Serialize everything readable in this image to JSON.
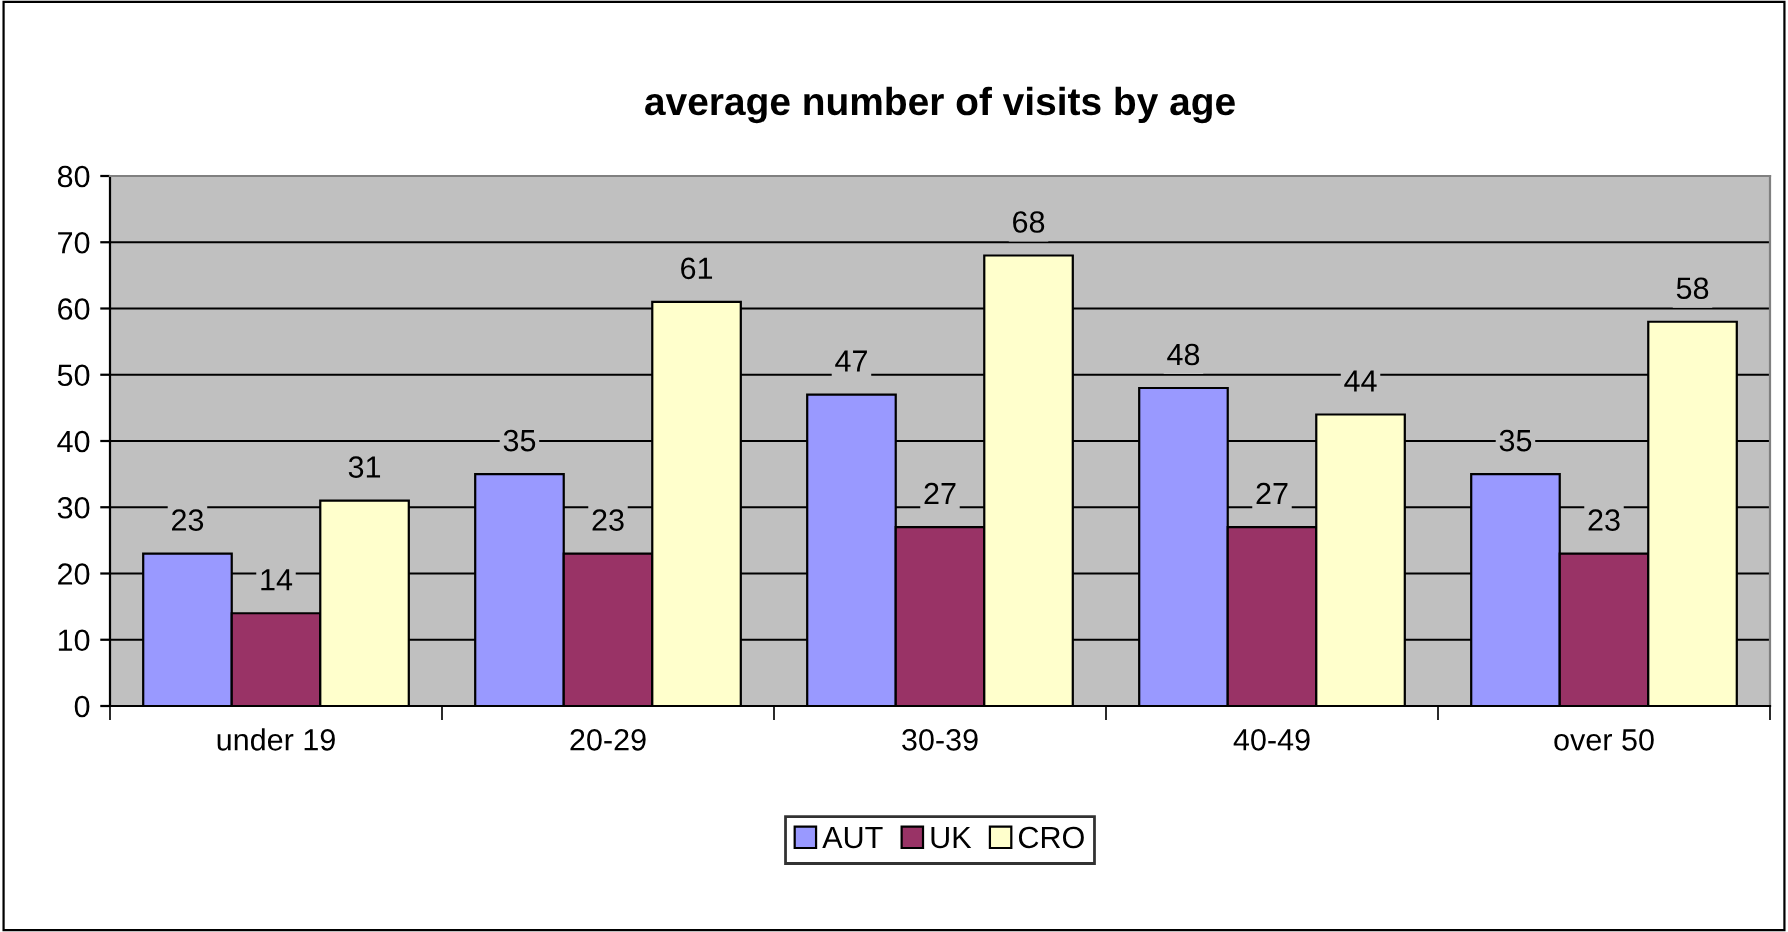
{
  "chart_data": {
    "type": "bar",
    "title": "average number of visits by age",
    "categories": [
      "under 19",
      "20-29",
      "30-39",
      "40-49",
      "over 50"
    ],
    "series": [
      {
        "name": "AUT",
        "color": "#9999ff",
        "values": [
          23,
          35,
          47,
          48,
          35
        ]
      },
      {
        "name": "UK",
        "color": "#993366",
        "values": [
          14,
          23,
          27,
          27,
          23
        ]
      },
      {
        "name": "CRO",
        "color": "#ffffcc",
        "values": [
          31,
          61,
          68,
          44,
          58
        ]
      }
    ],
    "ylim": [
      0,
      80
    ],
    "yticks": [
      0,
      10,
      20,
      30,
      40,
      50,
      60,
      70,
      80
    ],
    "grid": "y",
    "legend": "bottom",
    "data_labels": true
  }
}
